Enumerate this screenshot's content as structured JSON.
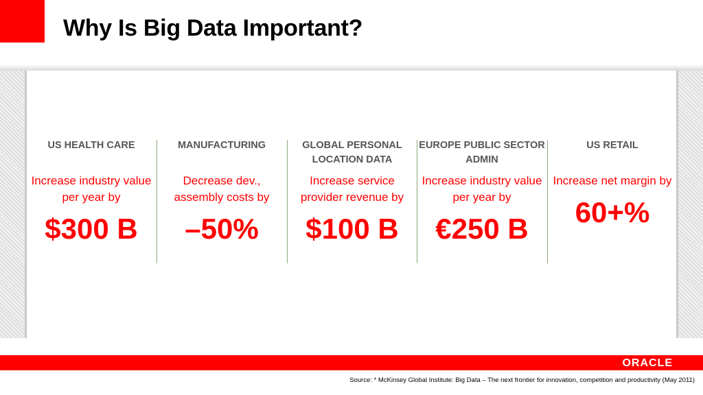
{
  "slide": {
    "title": "Why Is Big Data Important?",
    "brand": "ORACLE",
    "source": "Source: * McKinsey Global Institute: Big Data – The next frontier for innovation, competition and productivity (May 2011)",
    "accent_color": "#ff0000",
    "divider_color": "#8aaa78"
  },
  "columns": [
    {
      "heading": "US HEALTH CARE",
      "description": "Increase industry value per year by",
      "value": "$300 B"
    },
    {
      "heading": "MANUFACTURING",
      "description": "Decrease dev., assembly costs by",
      "value": "–50%"
    },
    {
      "heading": "GLOBAL PERSONAL LOCATION DATA",
      "description": "Increase service provider revenue by",
      "value": "$100 B"
    },
    {
      "heading": "EUROPE PUBLIC SECTOR ADMIN",
      "description": "Increase industry value per year by",
      "value": "€250 B"
    },
    {
      "heading": "US RETAIL",
      "description": "Increase net margin by",
      "value": "60+%"
    }
  ]
}
